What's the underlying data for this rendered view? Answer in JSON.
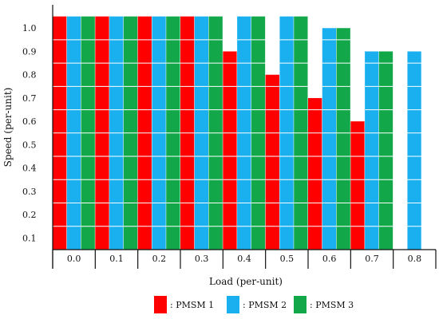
{
  "chart_data": {
    "type": "bar",
    "title": "",
    "xlabel": "Load (per-unit)",
    "ylabel": "Speed (per-unit)",
    "categories": [
      "0.0",
      "0.1",
      "0.2",
      "0.3",
      "0.4",
      "0.5",
      "0.6",
      "0.7",
      "0.8"
    ],
    "yticks": [
      "0.1",
      "0.2",
      "0.3",
      "0.4",
      "0.5",
      "0.6",
      "0.7",
      "0.8",
      "0.9",
      "1.0"
    ],
    "ylim": [
      0,
      1.05
    ],
    "grid": true,
    "legend_position": "bottom-center",
    "series": [
      {
        "name": ": PMSM 1",
        "color": "#ff0000",
        "values": [
          1.0,
          1.0,
          1.0,
          1.0,
          0.85,
          0.75,
          0.65,
          0.55,
          0.0
        ]
      },
      {
        "name": ": PMSM 2",
        "color": "#1ab0f0",
        "values": [
          1.0,
          1.0,
          1.0,
          1.0,
          1.0,
          1.0,
          0.95,
          0.85,
          0.85
        ]
      },
      {
        "name": ": PMSM 3",
        "color": "#12a84a",
        "values": [
          1.0,
          1.0,
          1.0,
          1.0,
          1.0,
          1.0,
          0.95,
          0.85,
          0.0
        ]
      }
    ]
  }
}
